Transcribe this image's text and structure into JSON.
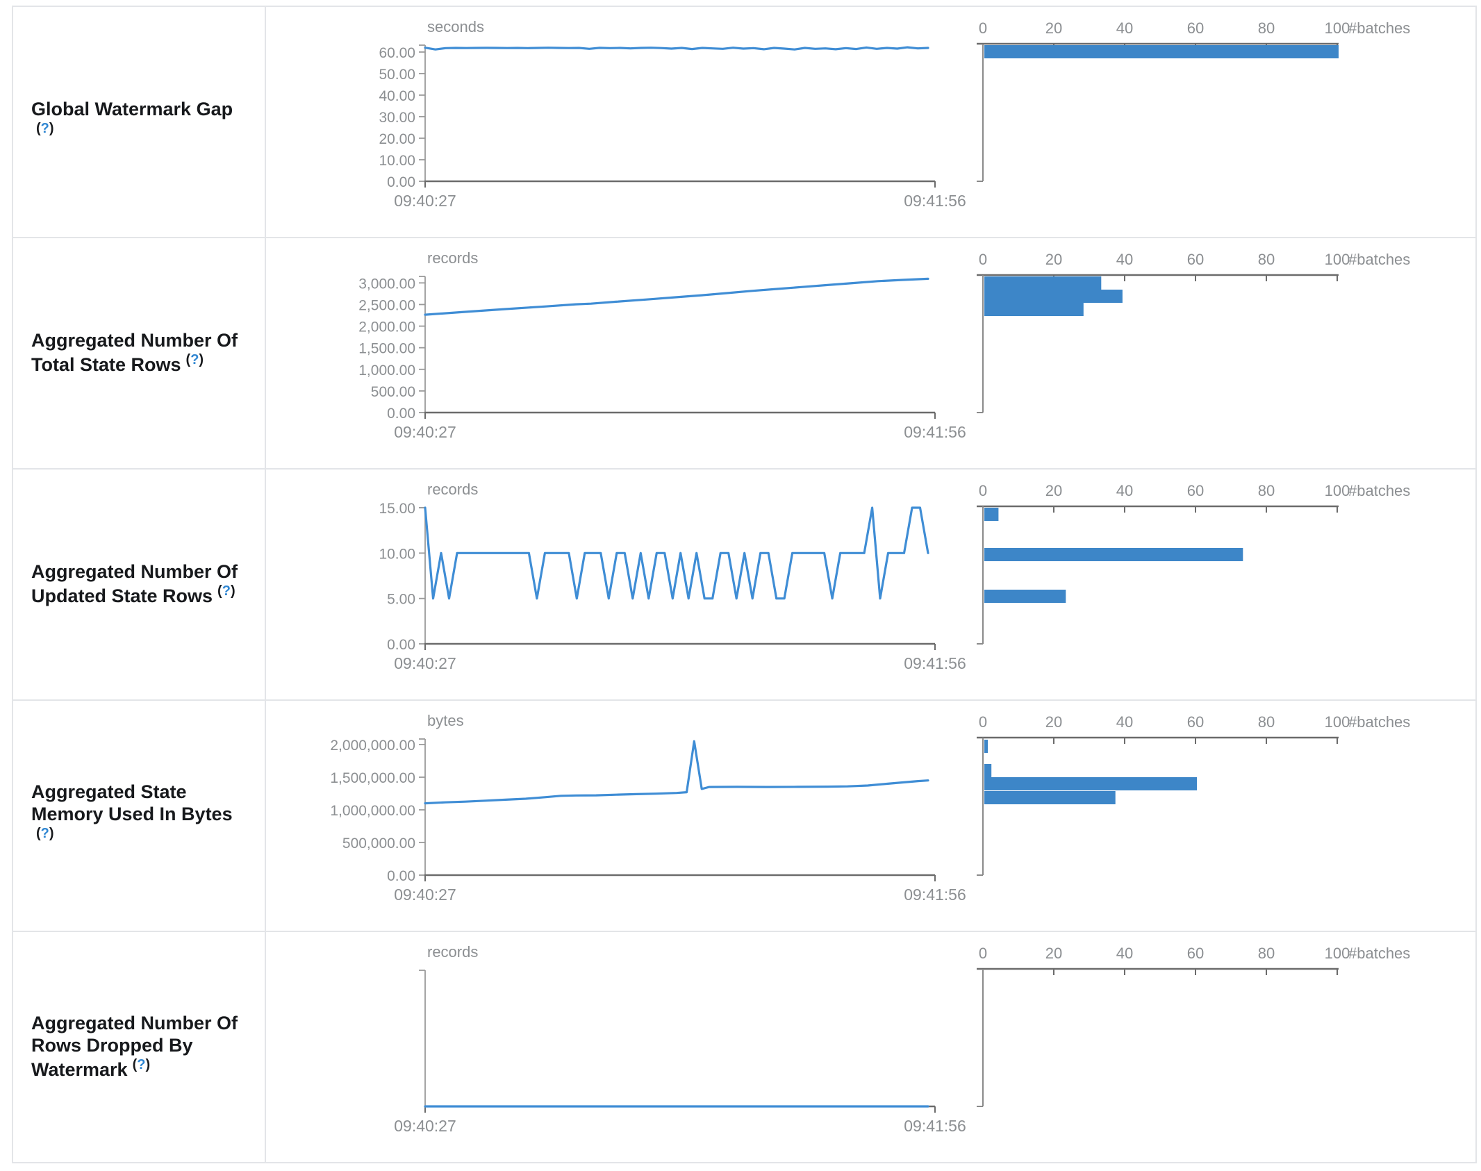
{
  "colors": {
    "line_blue": "#3f8dd5",
    "bar_blue": "#3d86c8",
    "axis_dark_gray": "#6b6b6b",
    "axis_light_gray": "#9a9a9a",
    "text_gray": "#8c8f92",
    "label_text": "#17191c",
    "help_link_blue": "#2f86d2",
    "border_gray": "#e3e5e8"
  },
  "help": {
    "open": "(",
    "q": "?",
    "close": ")"
  },
  "time_axis": {
    "start": "09:40:27",
    "end": "09:41:56"
  },
  "hist_axis": {
    "unit": "#batches",
    "max": 100,
    "ticks": [
      {
        "label": "0",
        "v": 0
      },
      {
        "label": "20",
        "v": 20
      },
      {
        "label": "40",
        "v": 40
      },
      {
        "label": "60",
        "v": 60
      },
      {
        "label": "80",
        "v": 80
      },
      {
        "label": "100",
        "v": 100
      }
    ]
  },
  "rows": [
    {
      "label": "Global Watermark Gap\n",
      "timeline": {
        "type": "line",
        "unit": "seconds",
        "dmax": 63.2,
        "ticks": [
          {
            "label": "0.00",
            "v": 0
          },
          {
            "label": "10.00",
            "v": 10
          },
          {
            "label": "20.00",
            "v": 20
          },
          {
            "label": "30.00",
            "v": 30
          },
          {
            "label": "40.00",
            "v": 40
          },
          {
            "label": "50.00",
            "v": 50
          },
          {
            "label": "60.00",
            "v": 60
          }
        ],
        "values": [
          62.0,
          61.2,
          61.8,
          61.9,
          61.85,
          61.9,
          61.95,
          61.9,
          61.85,
          61.9,
          61.8,
          61.9,
          62.0,
          61.9,
          61.85,
          61.9,
          61.5,
          61.95,
          61.8,
          61.9,
          61.7,
          61.9,
          62.0,
          61.85,
          61.6,
          61.9,
          61.4,
          61.9,
          61.7,
          61.5,
          62.0,
          61.6,
          61.8,
          61.3,
          61.9,
          61.6,
          61.2,
          61.9,
          61.5,
          61.7,
          61.3,
          61.8,
          61.4,
          62.1,
          61.5,
          61.9,
          61.6,
          62.2,
          61.7,
          61.9
        ]
      },
      "histogram": {
        "type": "bar",
        "bars": [
          {
            "f": 0.01,
            "n": 100
          }
        ]
      }
    },
    {
      "label": "Aggregated Number Of\nTotal State Rows",
      "timeline": {
        "type": "line",
        "unit": "records",
        "dmax": 3150,
        "ticks": [
          {
            "label": "0.00",
            "v": 0
          },
          {
            "label": "500.00",
            "v": 500
          },
          {
            "label": "1,000.00",
            "v": 1000
          },
          {
            "label": "1,500.00",
            "v": 1500
          },
          {
            "label": "2,000.00",
            "v": 2000
          },
          {
            "label": "2,500.00",
            "v": 2500
          },
          {
            "label": "3,000.00",
            "v": 3000
          }
        ],
        "points": [
          [
            0,
            2265
          ],
          [
            0.08,
            2330
          ],
          [
            0.16,
            2395
          ],
          [
            0.24,
            2455
          ],
          [
            0.3,
            2505
          ],
          [
            0.33,
            2520
          ],
          [
            0.38,
            2565
          ],
          [
            0.45,
            2625
          ],
          [
            0.5,
            2670
          ],
          [
            0.55,
            2715
          ],
          [
            0.6,
            2765
          ],
          [
            0.65,
            2815
          ],
          [
            0.7,
            2860
          ],
          [
            0.75,
            2905
          ],
          [
            0.8,
            2950
          ],
          [
            0.85,
            2995
          ],
          [
            0.9,
            3040
          ],
          [
            0.95,
            3070
          ],
          [
            1,
            3095
          ]
        ]
      },
      "histogram": {
        "type": "bar",
        "bars": [
          {
            "f": 0.01,
            "n": 33
          },
          {
            "f": 0.105,
            "n": 39
          },
          {
            "f": 0.2,
            "n": 28
          }
        ]
      }
    },
    {
      "label": "Aggregated Number Of\nUpdated State Rows",
      "timeline": {
        "type": "line",
        "unit": "records",
        "dmax": 15,
        "ticks": [
          {
            "label": "0.00",
            "v": 0
          },
          {
            "label": "5.00",
            "v": 5
          },
          {
            "label": "10.00",
            "v": 10
          },
          {
            "label": "15.00",
            "v": 15
          }
        ],
        "values": [
          15,
          5,
          10,
          5,
          10,
          10,
          10,
          10,
          10,
          10,
          10,
          10,
          10,
          10,
          5,
          10,
          10,
          10,
          10,
          5,
          10,
          10,
          10,
          5,
          10,
          10,
          5,
          10,
          5,
          10,
          10,
          5,
          10,
          5,
          10,
          5,
          5,
          10,
          10,
          5,
          10,
          5,
          10,
          10,
          5,
          5,
          10,
          10,
          10,
          10,
          10,
          5,
          10,
          10,
          10,
          10,
          15,
          5,
          10,
          10,
          10,
          15,
          15,
          10
        ]
      },
      "histogram": {
        "type": "bar",
        "bars": [
          {
            "f": 0.01,
            "n": 4
          },
          {
            "f": 0.3,
            "n": 73
          },
          {
            "f": 0.6,
            "n": 23
          }
        ]
      }
    },
    {
      "label": "Aggregated State\nMemory Used In Bytes\n",
      "timeline": {
        "type": "line",
        "unit": "bytes",
        "dmax": 2085000,
        "ticks": [
          {
            "label": "0.00",
            "v": 0
          },
          {
            "label": "500,000.00",
            "v": 500000
          },
          {
            "label": "1,000,000.00",
            "v": 1000000
          },
          {
            "label": "1,500,000.00",
            "v": 1500000
          },
          {
            "label": "2,000,000.00",
            "v": 2000000
          }
        ],
        "points": [
          [
            0,
            1100000
          ],
          [
            0.04,
            1115000
          ],
          [
            0.08,
            1125000
          ],
          [
            0.12,
            1140000
          ],
          [
            0.16,
            1155000
          ],
          [
            0.2,
            1170000
          ],
          [
            0.24,
            1195000
          ],
          [
            0.27,
            1215000
          ],
          [
            0.3,
            1220000
          ],
          [
            0.34,
            1222000
          ],
          [
            0.38,
            1232000
          ],
          [
            0.42,
            1240000
          ],
          [
            0.46,
            1248000
          ],
          [
            0.5,
            1258000
          ],
          [
            0.52,
            1270000
          ],
          [
            0.535,
            2050000
          ],
          [
            0.55,
            1320000
          ],
          [
            0.565,
            1350000
          ],
          [
            0.62,
            1352000
          ],
          [
            0.68,
            1350000
          ],
          [
            0.74,
            1352000
          ],
          [
            0.8,
            1355000
          ],
          [
            0.84,
            1360000
          ],
          [
            0.88,
            1372000
          ],
          [
            0.92,
            1400000
          ],
          [
            0.95,
            1420000
          ],
          [
            0.98,
            1440000
          ],
          [
            1,
            1450000
          ]
        ]
      },
      "histogram": {
        "type": "bar",
        "bars": [
          {
            "f": 0.015,
            "n": 1
          },
          {
            "f": 0.19,
            "n": 2
          },
          {
            "f": 0.285,
            "n": 60
          },
          {
            "f": 0.385,
            "n": 37
          }
        ]
      }
    },
    {
      "label": "Aggregated Number Of\nRows Dropped By\nWatermark",
      "timeline": {
        "type": "line",
        "unit": "records",
        "dmax": 1,
        "ticks": [],
        "values": [
          0,
          0
        ]
      },
      "histogram": {
        "type": "bar",
        "bars": []
      }
    }
  ]
}
